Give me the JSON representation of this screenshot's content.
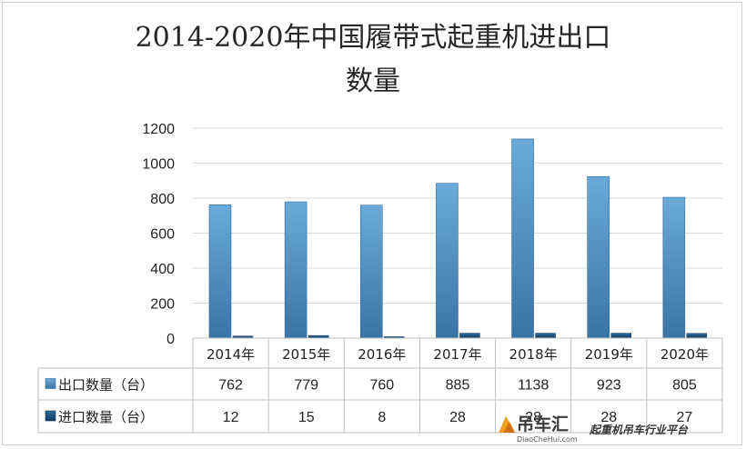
{
  "chart_data": {
    "type": "bar",
    "title": "2014-2020年中国履带式起重机进出口数量",
    "title_lines": [
      "2014-2020年中国履带式起重机进出口",
      "数量"
    ],
    "categories": [
      "2014年",
      "2015年",
      "2016年",
      "2017年",
      "2018年",
      "2019年",
      "2020年"
    ],
    "series": [
      {
        "name": "出口数量（台）",
        "values": [
          762,
          779,
          760,
          885,
          1138,
          923,
          805
        ],
        "color": "#5b9bd5"
      },
      {
        "name": "进口数量（台）",
        "values": [
          12,
          15,
          8,
          28,
          28,
          28,
          27
        ],
        "color": "#1f4e79"
      }
    ],
    "table_values": [
      [
        "762",
        "779",
        "760",
        "885",
        "1138",
        "923",
        "805"
      ],
      [
        "12",
        "15",
        "8",
        "28",
        "28",
        "28",
        "27"
      ]
    ],
    "yticks": [
      0,
      200,
      400,
      600,
      800,
      1000,
      1200
    ],
    "ylim": [
      0,
      1200
    ],
    "grid": true,
    "legend": "data-table"
  },
  "watermark": {
    "name": "吊车汇",
    "url": "DiaoCheHui.com",
    "tagline": "起重机吊车行业平台"
  }
}
